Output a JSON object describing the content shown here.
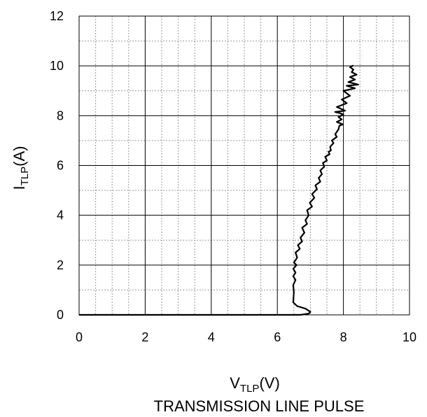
{
  "chart_data": {
    "type": "line",
    "title": "TRANSMISSION LINE PULSE",
    "xlabel": {
      "main": "V",
      "sub": "TLP",
      "unit": "(V)"
    },
    "ylabel": {
      "main": "I",
      "sub": "TLP",
      "unit": "(A)"
    },
    "xlim": [
      0,
      10
    ],
    "ylim": [
      0,
      12
    ],
    "xticks": [
      "0",
      "2",
      "4",
      "6",
      "8",
      "10"
    ],
    "yticks": [
      "0",
      "2",
      "4",
      "6",
      "8",
      "10",
      "12"
    ],
    "grid": true,
    "minor_grid": true,
    "line_color": "#000000",
    "series": [
      {
        "x": [
          0.0,
          6.7,
          6.95,
          7.0,
          6.85,
          6.6,
          6.48,
          6.5,
          6.48,
          6.55,
          6.48,
          6.55,
          6.48,
          6.58,
          6.5,
          6.6,
          6.55,
          6.68,
          6.62,
          6.75,
          6.7,
          6.82,
          6.75,
          6.9,
          6.85,
          6.95,
          6.9,
          7.05,
          6.98,
          7.12,
          7.05,
          7.2,
          7.15,
          7.3,
          7.25,
          7.35,
          7.3,
          7.42,
          7.38,
          7.5,
          7.45,
          7.58,
          7.55,
          7.62,
          7.6,
          7.7,
          7.65,
          7.8,
          7.75,
          7.85,
          7.88,
          7.98,
          7.8,
          7.95,
          7.85,
          8.0,
          7.9,
          7.75,
          8.05,
          7.8,
          8.1,
          7.95,
          8.2,
          8.0,
          8.35,
          8.1,
          8.45,
          8.15,
          8.35,
          8.2,
          8.4,
          8.25,
          8.3,
          8.2,
          8.3
        ],
        "y": [
          0.0,
          0.0,
          0.05,
          0.12,
          0.25,
          0.35,
          0.5,
          0.9,
          1.2,
          1.4,
          1.55,
          1.7,
          1.85,
          2.0,
          2.1,
          2.3,
          2.5,
          2.65,
          2.8,
          2.95,
          3.1,
          3.3,
          3.5,
          3.65,
          3.8,
          4.0,
          4.2,
          4.35,
          4.5,
          4.7,
          4.85,
          5.05,
          5.2,
          5.35,
          5.5,
          5.65,
          5.8,
          5.95,
          6.1,
          6.2,
          6.35,
          6.45,
          6.55,
          6.6,
          6.75,
          6.9,
          7.0,
          7.15,
          7.25,
          7.45,
          7.6,
          7.65,
          7.75,
          7.85,
          7.95,
          8.05,
          8.1,
          8.15,
          8.2,
          8.35,
          8.5,
          8.65,
          8.8,
          9.0,
          9.1,
          9.2,
          9.25,
          9.35,
          9.45,
          9.55,
          9.65,
          9.75,
          9.85,
          9.95,
          10.02
        ]
      }
    ]
  }
}
